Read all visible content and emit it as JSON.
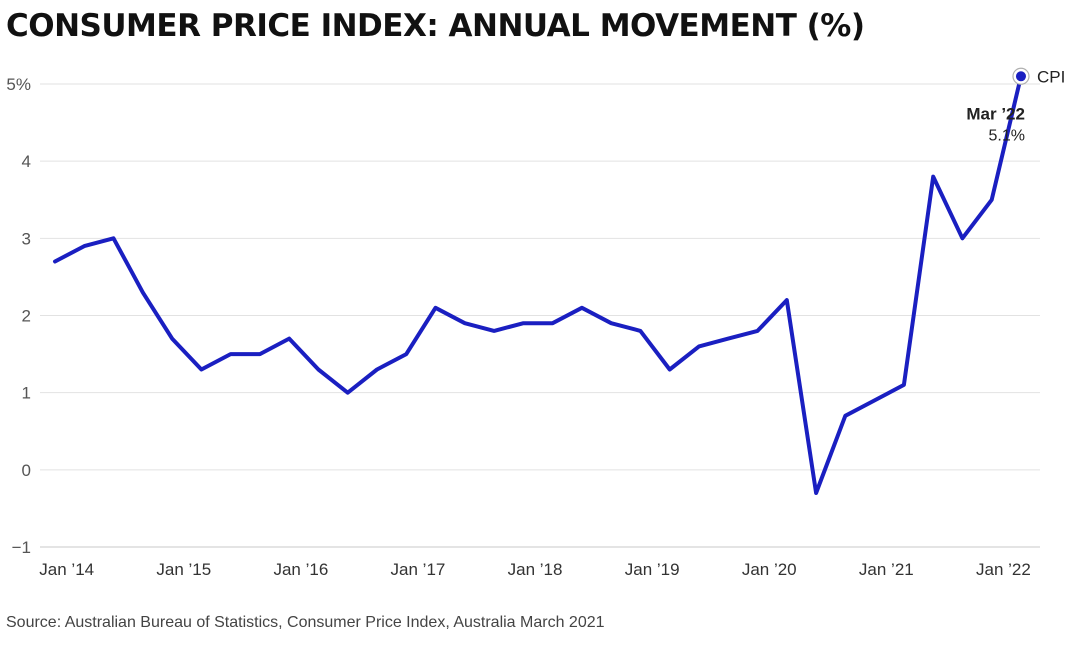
{
  "title": "CONSUMER PRICE INDEX: ANNUAL MOVEMENT (%)",
  "source": "Source: Australian Bureau of Statistics, Consumer Price Index, Australia March 2021",
  "colors": {
    "line": "#1a1fc1",
    "grid": "#e2e2e2",
    "axis": "#c8c8c8"
  },
  "chart_data": {
    "type": "line",
    "title": "CONSUMER PRICE INDEX: ANNUAL MOVEMENT (%)",
    "xlabel": "",
    "ylabel": "",
    "ylim": [
      -1,
      5
    ],
    "grid": true,
    "y_ticks": [
      {
        "value": -1,
        "label": "−1"
      },
      {
        "value": 0,
        "label": "0"
      },
      {
        "value": 1,
        "label": "1"
      },
      {
        "value": 2,
        "label": "2"
      },
      {
        "value": 3,
        "label": "3"
      },
      {
        "value": 4,
        "label": "4"
      },
      {
        "value": 5,
        "label": "5%"
      }
    ],
    "x_ticks": [
      "Jan ’14",
      "Jan ’15",
      "Jan ’16",
      "Jan ’17",
      "Jan ’18",
      "Jan ’19",
      "Jan ’20",
      "Jan ’21",
      "Jan ’22"
    ],
    "series": [
      {
        "name": "CPI",
        "x": [
          "Mar 2014",
          "Jun 2014",
          "Sep 2014",
          "Dec 2014",
          "Mar 2015",
          "Jun 2015",
          "Sep 2015",
          "Dec 2015",
          "Mar 2016",
          "Jun 2016",
          "Sep 2016",
          "Dec 2016",
          "Mar 2017",
          "Jun 2017",
          "Sep 2017",
          "Dec 2017",
          "Mar 2018",
          "Jun 2018",
          "Sep 2018",
          "Dec 2018",
          "Mar 2019",
          "Jun 2019",
          "Sep 2019",
          "Dec 2019",
          "Mar 2020",
          "Jun 2020",
          "Sep 2020",
          "Dec 2020",
          "Mar 2021",
          "Jun 2021",
          "Sep 2021",
          "Dec 2021",
          "Mar 2022"
        ],
        "values": [
          2.9,
          3.0,
          2.3,
          1.7,
          1.3,
          1.5,
          1.5,
          1.7,
          1.3,
          1.0,
          1.3,
          1.5,
          2.1,
          1.9,
          1.8,
          1.9,
          1.9,
          2.1,
          1.9,
          1.8,
          1.3,
          1.6,
          1.7,
          1.8,
          2.2,
          -0.3,
          0.7,
          0.9,
          1.1,
          3.8,
          3.0,
          3.5,
          5.1
        ],
        "first_point": {
          "x": "Dec 2013",
          "value": 2.7
        }
      }
    ],
    "annotation": {
      "title": "Mar ’22",
      "value": "5.1%"
    }
  }
}
